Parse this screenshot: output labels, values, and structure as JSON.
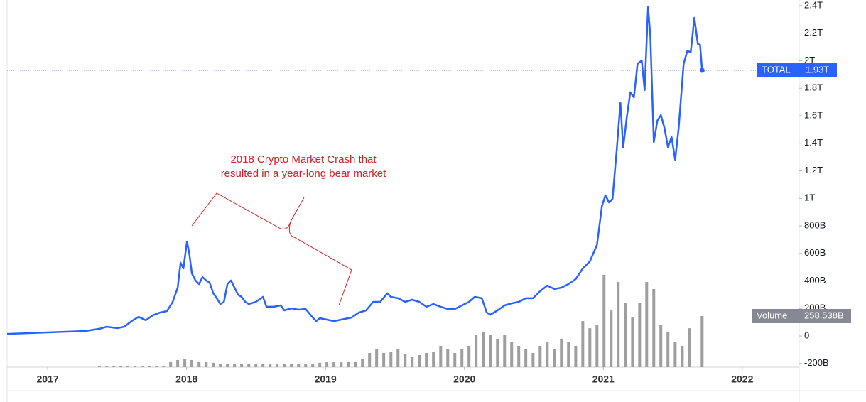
{
  "chart_data": {
    "type": "line",
    "annotation": [
      "2018 Crypto Market Crash that",
      "resulted in a year-long bear market"
    ],
    "xlim": [
      2016.708,
      2022.41
    ],
    "xticks": [
      2017,
      2018,
      2019,
      2020,
      2021,
      2022
    ],
    "ylim": [
      -227,
      2441
    ],
    "yticks": [
      {
        "value": 2400,
        "label": "2.4T"
      },
      {
        "value": 2200,
        "label": "2.2T"
      },
      {
        "value": 2000,
        "label": "2T"
      },
      {
        "value": 1800,
        "label": "1.8T"
      },
      {
        "value": 1600,
        "label": "1.6T"
      },
      {
        "value": 1400,
        "label": "1.4T"
      },
      {
        "value": 1200,
        "label": "1.2T"
      },
      {
        "value": 1000,
        "label": "1T"
      },
      {
        "value": 800,
        "label": "800B"
      },
      {
        "value": 600,
        "label": "600B"
      },
      {
        "value": 400,
        "label": "400B"
      },
      {
        "value": 200,
        "label": "200B"
      },
      0,
      {
        "value": -200,
        "label": "-200B"
      }
    ],
    "y2lim": [
      0,
      1856
    ],
    "series": [
      {
        "name": "TOTAL",
        "color": "#2962ff",
        "last_label": "1.93T",
        "x": [
          2016.708,
          2017.0,
          2017.271,
          2017.373,
          2017.425,
          2017.501,
          2017.552,
          2017.604,
          2017.655,
          2017.706,
          2017.757,
          2017.808,
          2017.859,
          2017.9,
          2017.936,
          2017.957,
          2017.977,
          2018.003,
          2018.018,
          2018.038,
          2018.064,
          2018.09,
          2018.115,
          2018.141,
          2018.166,
          2018.192,
          2018.217,
          2018.243,
          2018.269,
          2018.294,
          2018.32,
          2018.345,
          2018.371,
          2018.396,
          2018.422,
          2018.448,
          2018.499,
          2018.55,
          2018.575,
          2018.627,
          2018.678,
          2018.703,
          2018.754,
          2018.806,
          2018.857,
          2018.908,
          2018.934,
          2018.959,
          2019.01,
          2019.061,
          2019.113,
          2019.189,
          2019.24,
          2019.292,
          2019.343,
          2019.394,
          2019.445,
          2019.471,
          2019.522,
          2019.573,
          2019.624,
          2019.675,
          2019.726,
          2019.777,
          2019.829,
          2019.88,
          2019.931,
          2019.982,
          2020.033,
          2020.074,
          2020.125,
          2020.161,
          2020.187,
          2020.238,
          2020.289,
          2020.34,
          2020.391,
          2020.442,
          2020.494,
          2020.545,
          2020.596,
          2020.647,
          2020.698,
          2020.749,
          2020.801,
          2020.852,
          2020.903,
          2020.954,
          2020.99,
          2021.015,
          2021.041,
          2021.066,
          2021.097,
          2021.123,
          2021.143,
          2021.169,
          2021.194,
          2021.22,
          2021.246,
          2021.276,
          2021.297,
          2021.322,
          2021.338,
          2021.363,
          2021.389,
          2021.414,
          2021.44,
          2021.465,
          2021.491,
          2021.517,
          2021.542,
          2021.578,
          2021.604,
          2021.629,
          2021.655,
          2021.68,
          2021.696,
          2021.711
        ],
        "values": [
          15,
          26,
          36,
          52,
          67,
          57,
          67,
          108,
          139,
          114,
          150,
          170,
          181,
          248,
          351,
          532,
          490,
          686,
          609,
          454,
          403,
          377,
          428,
          403,
          387,
          310,
          274,
          232,
          248,
          377,
          403,
          351,
          299,
          284,
          248,
          232,
          248,
          284,
          212,
          212,
          222,
          186,
          201,
          191,
          196,
          134,
          108,
          129,
          119,
          108,
          119,
          134,
          170,
          186,
          248,
          248,
          310,
          284,
          274,
          248,
          263,
          248,
          212,
          232,
          212,
          196,
          196,
          222,
          248,
          284,
          274,
          170,
          155,
          186,
          222,
          237,
          248,
          274,
          274,
          325,
          366,
          341,
          351,
          377,
          413,
          490,
          542,
          661,
          944,
          1022,
          970,
          996,
          1357,
          1693,
          1368,
          1590,
          1770,
          1734,
          1977,
          2002,
          1786,
          2390,
          2183,
          1409,
          1564,
          1605,
          1512,
          1373,
          1445,
          1280,
          1512,
          1977,
          2070,
          2064,
          2312,
          2121,
          2116,
          1930
        ]
      },
      {
        "name": "Volume",
        "color": "#9e9e9e",
        "axis": "y2",
        "last_label": "258.538B",
        "x": [
          2017.373,
          2017.425,
          2017.476,
          2017.527,
          2017.578,
          2017.629,
          2017.68,
          2017.731,
          2017.783,
          2017.834,
          2017.885,
          2017.936,
          2017.987,
          2018.038,
          2018.09,
          2018.141,
          2018.192,
          2018.243,
          2018.294,
          2018.345,
          2018.396,
          2018.448,
          2018.499,
          2018.55,
          2018.601,
          2018.652,
          2018.703,
          2018.754,
          2018.806,
          2018.857,
          2018.908,
          2018.959,
          2019.01,
          2019.061,
          2019.113,
          2019.164,
          2019.215,
          2019.266,
          2019.317,
          2019.368,
          2019.419,
          2019.471,
          2019.522,
          2019.573,
          2019.624,
          2019.675,
          2019.726,
          2019.777,
          2019.829,
          2019.88,
          2019.931,
          2019.982,
          2020.033,
          2020.084,
          2020.136,
          2020.187,
          2020.238,
          2020.289,
          2020.34,
          2020.391,
          2020.442,
          2020.494,
          2020.545,
          2020.596,
          2020.647,
          2020.698,
          2020.749,
          2020.801,
          2020.852,
          2020.903,
          2020.954,
          2021.005,
          2021.056,
          2021.107,
          2021.159,
          2021.21,
          2021.261,
          2021.312,
          2021.363,
          2021.414,
          2021.465,
          2021.517,
          2021.568,
          2021.619,
          2021.711
        ],
        "values": [
          7,
          7,
          7,
          7,
          7,
          7,
          7,
          7,
          7,
          7,
          29,
          36,
          43,
          36,
          29,
          25,
          22,
          18,
          18,
          18,
          18,
          18,
          18,
          18,
          18,
          18,
          18,
          18,
          18,
          18,
          18,
          22,
          25,
          25,
          25,
          29,
          29,
          43,
          72,
          90,
          72,
          79,
          90,
          65,
          54,
          61,
          72,
          79,
          108,
          90,
          72,
          90,
          108,
          162,
          180,
          162,
          144,
          162,
          126,
          108,
          90,
          72,
          108,
          126,
          90,
          144,
          126,
          108,
          233,
          197,
          215,
          467,
          287,
          431,
          323,
          251,
          323,
          431,
          395,
          215,
          180,
          126,
          108,
          197,
          258.538
        ]
      }
    ]
  }
}
